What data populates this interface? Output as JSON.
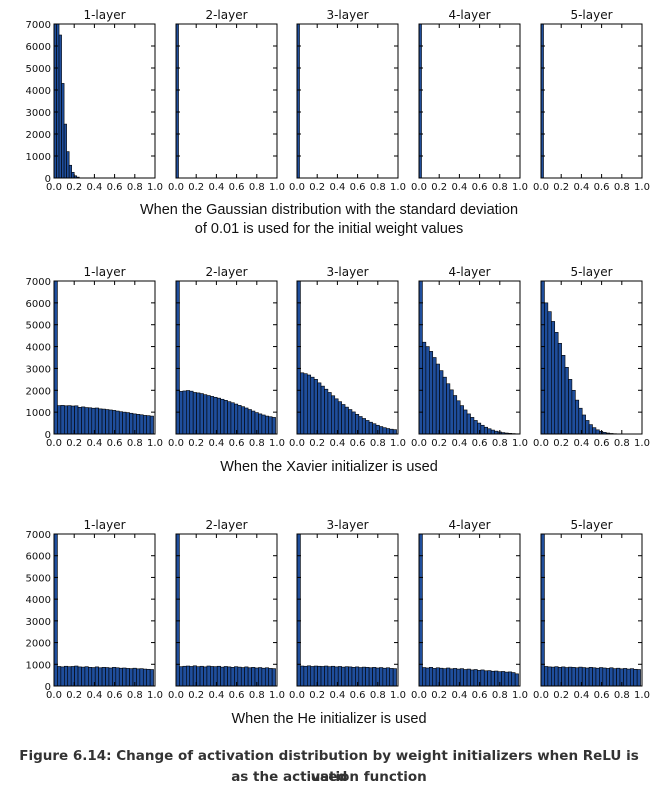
{
  "chart_data": [
    {
      "type": "bar",
      "caption": [
        "When the Gaussian distribution with the standard deviation",
        "of 0.01 is used for the initial weight values"
      ],
      "ylim": [
        0,
        7000
      ],
      "xlim": [
        0,
        1
      ],
      "x_ticks": [
        "0.0",
        "0.2",
        "0.4",
        "0.6",
        "0.8",
        "1.0"
      ],
      "y_ticks": [
        "0",
        "1000",
        "2000",
        "3000",
        "4000",
        "5000",
        "6000",
        "7000"
      ],
      "bar_color": "#1f4e9c",
      "panels": [
        {
          "title": "1-layer",
          "bin_start": 0.0,
          "bin_width": 0.025,
          "values": [
            7000,
            7000,
            6500,
            4300,
            2450,
            1200,
            580,
            260,
            100,
            40
          ]
        },
        {
          "title": "2-layer",
          "bin_start": 0.0,
          "bin_width": 0.025,
          "values": [
            7000
          ]
        },
        {
          "title": "3-layer",
          "bin_start": 0.0,
          "bin_width": 0.025,
          "values": [
            7000
          ]
        },
        {
          "title": "4-layer",
          "bin_start": 0.0,
          "bin_width": 0.025,
          "values": [
            7000
          ]
        },
        {
          "title": "5-layer",
          "bin_start": 0.0,
          "bin_width": 0.025,
          "values": [
            7000
          ]
        }
      ]
    },
    {
      "type": "bar",
      "caption": [
        "When the Xavier initializer is used"
      ],
      "ylim": [
        0,
        7000
      ],
      "xlim": [
        0,
        1
      ],
      "x_ticks": [
        "0.0",
        "0.2",
        "0.4",
        "0.6",
        "0.8",
        "1.0"
      ],
      "y_ticks": [
        "0",
        "1000",
        "2000",
        "3000",
        "4000",
        "5000",
        "6000",
        "7000"
      ],
      "bar_color": "#1f4e9c",
      "panels": [
        {
          "title": "1-layer",
          "bin_start": 0.0,
          "bin_width": 0.034,
          "values": [
            7000,
            1300,
            1310,
            1290,
            1300,
            1280,
            1290,
            1220,
            1240,
            1210,
            1200,
            1180,
            1190,
            1150,
            1140,
            1120,
            1100,
            1080,
            1050,
            1020,
            1000,
            980,
            950,
            920,
            900,
            880,
            850,
            840,
            820
          ]
        },
        {
          "title": "2-layer",
          "bin_start": 0.0,
          "bin_width": 0.034,
          "values": [
            7000,
            1950,
            1970,
            1990,
            1960,
            1900,
            1880,
            1850,
            1800,
            1760,
            1720,
            1680,
            1640,
            1590,
            1540,
            1480,
            1430,
            1370,
            1310,
            1250,
            1190,
            1120,
            1050,
            980,
            920,
            870,
            820,
            790,
            760
          ]
        },
        {
          "title": "3-layer",
          "bin_start": 0.0,
          "bin_width": 0.034,
          "values": [
            7000,
            2800,
            2760,
            2700,
            2600,
            2500,
            2340,
            2190,
            2050,
            1900,
            1750,
            1610,
            1480,
            1350,
            1230,
            1120,
            1010,
            900,
            800,
            710,
            620,
            540,
            470,
            400,
            340,
            290,
            250,
            220,
            200
          ]
        },
        {
          "title": "4-layer",
          "bin_start": 0.0,
          "bin_width": 0.034,
          "values": [
            7000,
            4200,
            4000,
            3780,
            3500,
            3200,
            2900,
            2600,
            2300,
            2020,
            1760,
            1520,
            1300,
            1100,
            920,
            760,
            620,
            500,
            400,
            310,
            240,
            180,
            130,
            95,
            65,
            45,
            30,
            20,
            12
          ]
        },
        {
          "title": "5-layer",
          "bin_start": 0.0,
          "bin_width": 0.034,
          "values": [
            7000,
            6000,
            5600,
            5150,
            4650,
            4150,
            3600,
            3050,
            2500,
            2000,
            1550,
            1180,
            870,
            620,
            430,
            290,
            190,
            120,
            75,
            45,
            25,
            14,
            8,
            4,
            2
          ]
        }
      ]
    },
    {
      "type": "bar",
      "caption": [
        "When the He initializer is used"
      ],
      "ylim": [
        0,
        7000
      ],
      "xlim": [
        0,
        1
      ],
      "x_ticks": [
        "0.0",
        "0.2",
        "0.4",
        "0.6",
        "0.8",
        "1.0"
      ],
      "y_ticks": [
        "0",
        "1000",
        "2000",
        "3000",
        "4000",
        "5000",
        "6000",
        "7000"
      ],
      "bar_color": "#1f4e9c",
      "panels": [
        {
          "title": "1-layer",
          "bin_start": 0.0,
          "bin_width": 0.034,
          "values": [
            7000,
            900,
            880,
            910,
            890,
            900,
            920,
            880,
            870,
            890,
            860,
            850,
            880,
            840,
            860,
            850,
            830,
            860,
            840,
            820,
            830,
            810,
            800,
            820,
            790,
            800,
            780,
            770,
            760
          ]
        },
        {
          "title": "2-layer",
          "bin_start": 0.0,
          "bin_width": 0.034,
          "values": [
            7000,
            890,
            910,
            920,
            900,
            930,
            890,
            910,
            880,
            920,
            900,
            890,
            910,
            870,
            900,
            880,
            860,
            890,
            870,
            850,
            880,
            840,
            860,
            830,
            850,
            820,
            840,
            810,
            800
          ]
        },
        {
          "title": "3-layer",
          "bin_start": 0.0,
          "bin_width": 0.034,
          "values": [
            7000,
            920,
            910,
            930,
            900,
            920,
            910,
            900,
            920,
            890,
            910,
            880,
            900,
            870,
            890,
            880,
            860,
            880,
            850,
            870,
            860,
            840,
            860,
            830,
            850,
            820,
            840,
            810,
            800
          ]
        },
        {
          "title": "4-layer",
          "bin_start": 0.0,
          "bin_width": 0.034,
          "values": [
            7000,
            850,
            830,
            860,
            810,
            840,
            820,
            800,
            830,
            790,
            810,
            780,
            800,
            760,
            780,
            740,
            760,
            720,
            740,
            700,
            710,
            680,
            690,
            660,
            670,
            640,
            650,
            620,
            560
          ]
        },
        {
          "title": "5-layer",
          "bin_start": 0.0,
          "bin_width": 0.034,
          "values": [
            7000,
            900,
            880,
            870,
            890,
            860,
            880,
            850,
            870,
            860,
            840,
            870,
            850,
            830,
            860,
            840,
            820,
            850,
            830,
            810,
            840,
            800,
            820,
            790,
            810,
            780,
            800,
            770,
            760
          ]
        }
      ]
    }
  ],
  "figure_caption": {
    "line1": "Figure 6.14: Change of activation distribution by weight initializers when ReLU is used",
    "line2": "as the activation function"
  }
}
